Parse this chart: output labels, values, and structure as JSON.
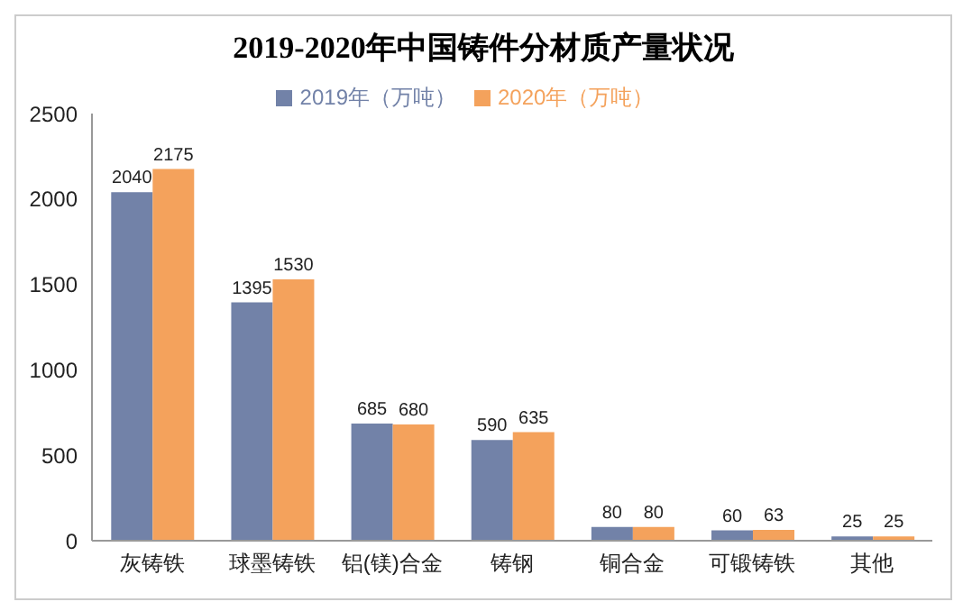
{
  "chart_data": {
    "type": "bar",
    "title": "2019-2020年中国铸件分材质产量状况",
    "categories": [
      "灰铸铁",
      "球墨铸铁",
      "铝(镁)合金",
      "铸钢",
      "铜合金",
      "可锻铸铁",
      "其他"
    ],
    "series": [
      {
        "name": "2019年（万吨）",
        "color": "#7282a8",
        "values": [
          2040,
          1395,
          685,
          590,
          80,
          60,
          25
        ]
      },
      {
        "name": "2020年（万吨）",
        "color": "#f4a25c",
        "values": [
          2175,
          1530,
          680,
          635,
          80,
          63,
          25
        ]
      }
    ],
    "ylim": [
      0,
      2500
    ],
    "yticks": [
      0,
      500,
      1000,
      1500,
      2000,
      2500
    ],
    "grid": false,
    "legend": "top",
    "data_labels": true
  }
}
